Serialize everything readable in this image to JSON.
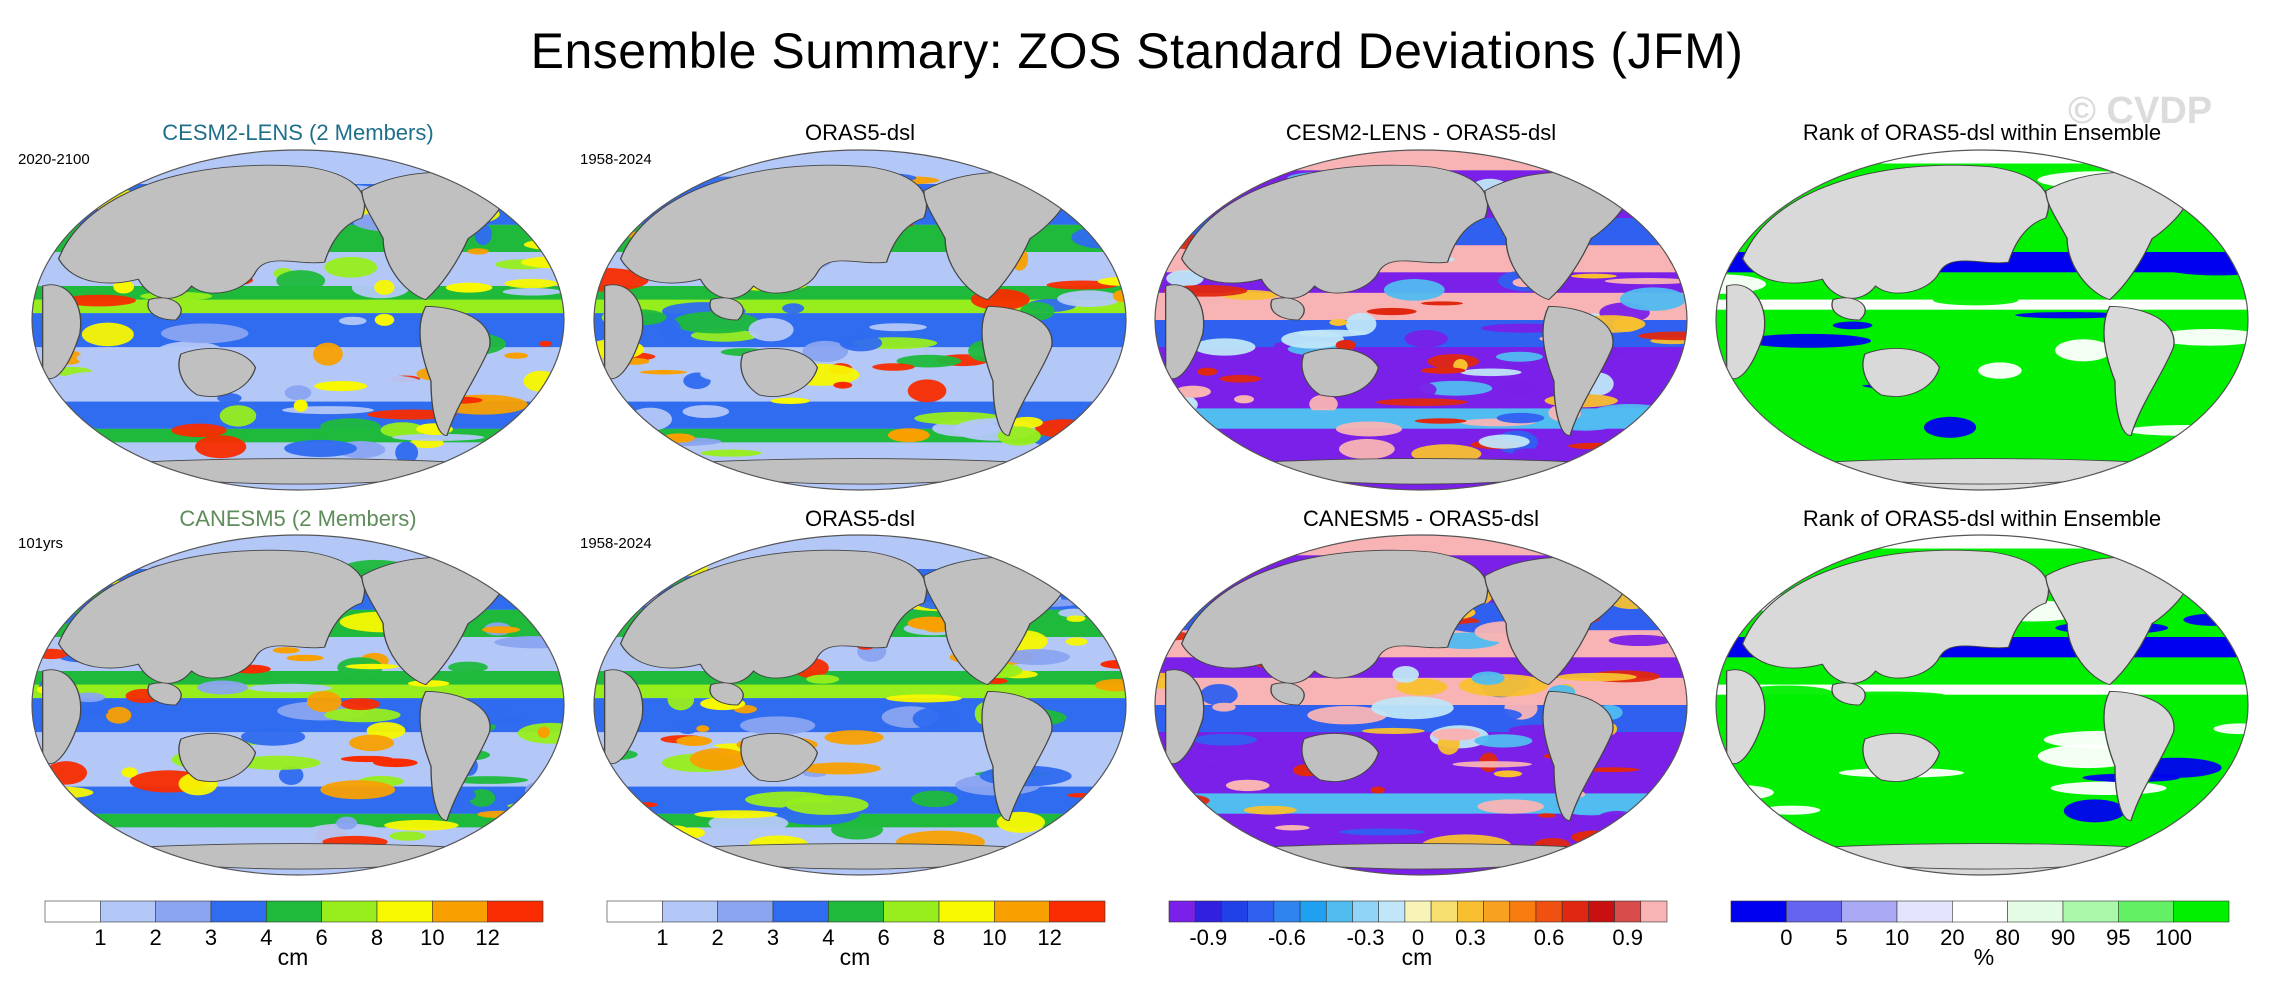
{
  "title": "Ensemble Summary: ZOS Standard Deviations (JFM)",
  "watermark": "© CVDP",
  "colors": {
    "ocean_gray": "#c0c0c0",
    "land_gray_rank": "#d9d9d9",
    "outline": "#555555"
  },
  "rows": [
    {
      "panels": [
        {
          "title": "CESM2-LENS (2 Members)",
          "title_color": "#1f6f8b",
          "period": "2020-2100",
          "kind": "std"
        },
        {
          "title": "ORAS5-dsl",
          "title_color": "#000000",
          "period": "1958-2024",
          "kind": "std"
        },
        {
          "title": "CESM2-LENS - ORAS5-dsl",
          "title_color": "#000000",
          "period": "",
          "kind": "diff"
        },
        {
          "title": "Rank of ORAS5-dsl within Ensemble",
          "title_color": "#000000",
          "period": "",
          "kind": "rank"
        }
      ]
    },
    {
      "panels": [
        {
          "title": "CANESM5 (2 Members)",
          "title_color": "#5e8c5a",
          "period": "101yrs",
          "kind": "std"
        },
        {
          "title": "ORAS5-dsl",
          "title_color": "#000000",
          "period": "1958-2024",
          "kind": "std"
        },
        {
          "title": "CANESM5 - ORAS5-dsl",
          "title_color": "#000000",
          "period": "",
          "kind": "diff"
        },
        {
          "title": "Rank of ORAS5-dsl within Ensemble",
          "title_color": "#000000",
          "period": "",
          "kind": "rank"
        }
      ]
    }
  ],
  "colorbars": [
    {
      "unit": "cm",
      "colors": [
        "#ffffff",
        "#b4c8f8",
        "#8aa4f0",
        "#2f6cf0",
        "#1fba3c",
        "#98ee1c",
        "#f8f800",
        "#f8a000",
        "#f82c00"
      ],
      "labels": [
        "1",
        "2",
        "3",
        "4",
        "6",
        "8",
        "10",
        "12"
      ]
    },
    {
      "unit": "cm",
      "colors": [
        "#ffffff",
        "#b4c8f8",
        "#8aa4f0",
        "#2f6cf0",
        "#1fba3c",
        "#98ee1c",
        "#f8f800",
        "#f8a000",
        "#f82c00"
      ],
      "labels": [
        "1",
        "2",
        "3",
        "4",
        "6",
        "8",
        "10",
        "12"
      ]
    },
    {
      "unit": "cm",
      "colors": [
        "#7a20e8",
        "#3020e0",
        "#2040e8",
        "#3060f0",
        "#2f84f0",
        "#20a0f0",
        "#50bcf0",
        "#90d4f8",
        "#c0e6f8",
        "#f8f4b8",
        "#f8e070",
        "#f8c030",
        "#f8a020",
        "#f87c10",
        "#f05010",
        "#e02810",
        "#c81010",
        "#d84c4c",
        "#f8b4b4"
      ],
      "labels": [
        "-0.9",
        "-0.6",
        "-0.3",
        "0",
        "0.3",
        "0.6",
        "0.9"
      ],
      "label_slots": [
        1.5,
        4.5,
        7.5,
        9.5,
        11.5,
        14.5,
        17.5
      ]
    },
    {
      "unit": "%",
      "colors": [
        "#0000f0",
        "#6464f0",
        "#aaaaf4",
        "#e4e4fc",
        "#ffffff",
        "#e4fce4",
        "#aaf8aa",
        "#64f064",
        "#00f000"
      ],
      "labels": [
        "0",
        "5",
        "10",
        "20",
        "80",
        "90",
        "95",
        "100"
      ],
      "label_slots": [
        1,
        2,
        3,
        4,
        5,
        6,
        7,
        8
      ]
    }
  ]
}
